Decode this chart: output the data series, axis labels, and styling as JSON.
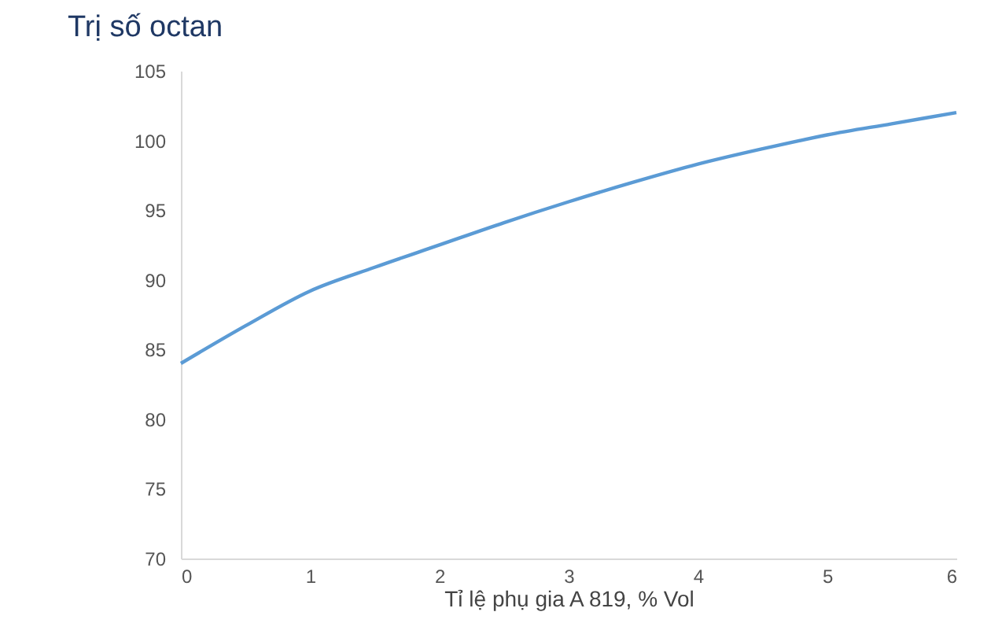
{
  "chart_data": {
    "type": "line",
    "title": "Trị số octan",
    "xlabel": "Tỉ lệ phụ gia A 819, % Vol",
    "x": [
      0,
      0.5,
      1,
      1.5,
      2,
      2.5,
      3,
      3.5,
      4,
      4.5,
      5,
      5.5,
      6
    ],
    "series": [
      {
        "color": "#5b9bd5",
        "values": [
          84,
          86.7,
          89.2,
          90.9,
          92.5,
          94.1,
          95.6,
          97,
          98.3,
          99.4,
          100.4,
          101.2,
          102
        ]
      }
    ],
    "xlim": [
      0,
      6
    ],
    "xticks": [
      0,
      1,
      2,
      3,
      4,
      5,
      6
    ],
    "ylim": [
      70,
      105
    ],
    "yticks": [
      70,
      75,
      80,
      85,
      90,
      95,
      100,
      105
    ],
    "grid": false,
    "legend": false,
    "marker": "none",
    "line_style": "solid"
  }
}
